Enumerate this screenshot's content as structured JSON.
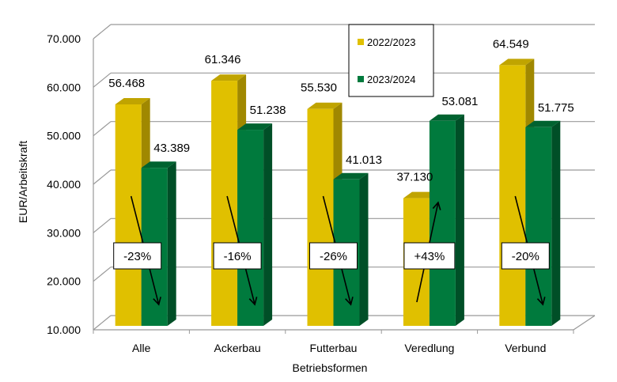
{
  "chart_data": {
    "type": "bar",
    "style": "3d-clustered",
    "categories": [
      "Alle",
      "Ackerbau",
      "Futterbau",
      "Veredlung",
      "Verbund"
    ],
    "series": [
      {
        "name": "2022/2023",
        "values": [
          56468,
          61346,
          55530,
          37130,
          64549
        ],
        "labels": [
          "56.468",
          "61.346",
          "55.530",
          "37.130",
          "64.549"
        ],
        "color": "#E0C000"
      },
      {
        "name": "2023/2024",
        "values": [
          43389,
          51238,
          41013,
          53081,
          51775
        ],
        "labels": [
          "43.389",
          "51.238",
          "41.013",
          "53.081",
          "51.775"
        ],
        "color": "#007A3D"
      }
    ],
    "changes": [
      "-23%",
      "-16%",
      "-26%",
      "+43%",
      "-20%"
    ],
    "xlabel": "Betriebsformen",
    "ylabel": "EUR/Arbeitskraft",
    "ylim": [
      10000,
      70000
    ],
    "yticks": [
      "10.000",
      "20.000",
      "30.000",
      "40.000",
      "50.000",
      "60.000",
      "70.000"
    ],
    "grid": true,
    "legend": "top-center"
  }
}
